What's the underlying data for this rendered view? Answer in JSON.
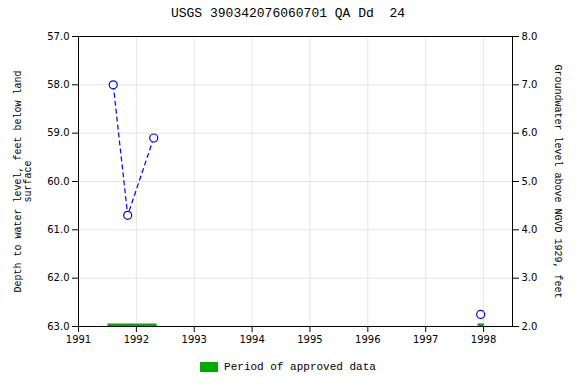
{
  "chart_data": {
    "type": "line",
    "title": "USGS 390342076060701 QA Dd  24",
    "ylabel": "Depth to water level, feet below land\nsurface",
    "y2label": "Groundwater level above NGVD 1929, feet",
    "series": [
      {
        "type": "line",
        "color": "blue",
        "marker": "circle",
        "line_style": "dashed",
        "x": [
          1991.6,
          1991.85,
          1992.3
        ],
        "values": [
          58.0,
          60.7,
          59.1
        ]
      },
      {
        "type": "scatter",
        "color": "blue",
        "marker": "circle",
        "x": [
          1997.95
        ],
        "values": [
          62.75
        ]
      },
      {
        "name": "Period of approved data",
        "type": "line",
        "color": "#00aa00",
        "line_style": "solid",
        "x": [
          1991.5,
          1992.35
        ],
        "values": [
          63.0,
          63.0
        ]
      },
      {
        "type": "scatter",
        "color": "#00aa00",
        "marker": "square",
        "x": [
          1997.95
        ],
        "values": [
          63.0
        ]
      }
    ],
    "xlim": [
      1991.0,
      1998.5
    ],
    "xticks": [
      1991,
      1992,
      1993,
      1994,
      1995,
      1996,
      1997,
      1998
    ],
    "ylim": [
      63.0,
      57.0
    ],
    "yticks": [
      {
        "value": 57.0,
        "label": "57.0"
      },
      {
        "value": 58.0,
        "label": "58.0"
      },
      {
        "value": 59.0,
        "label": "59.0"
      },
      {
        "value": 60.0,
        "label": "60.0"
      },
      {
        "value": 61.0,
        "label": "61.0"
      },
      {
        "value": 62.0,
        "label": "62.0"
      },
      {
        "value": 63.0,
        "label": "63.0"
      }
    ],
    "y2lim": [
      2.0,
      8.0
    ],
    "y2ticks": [
      {
        "value": 2.0,
        "label": "2.0"
      },
      {
        "value": 3.0,
        "label": "3.0"
      },
      {
        "value": 4.0,
        "label": "4.0"
      },
      {
        "value": 5.0,
        "label": "5.0"
      },
      {
        "value": 6.0,
        "label": "6.0"
      },
      {
        "value": 7.0,
        "label": "7.0"
      },
      {
        "value": 8.0,
        "label": "8.0"
      }
    ],
    "grid": true,
    "legend": "bottom"
  }
}
